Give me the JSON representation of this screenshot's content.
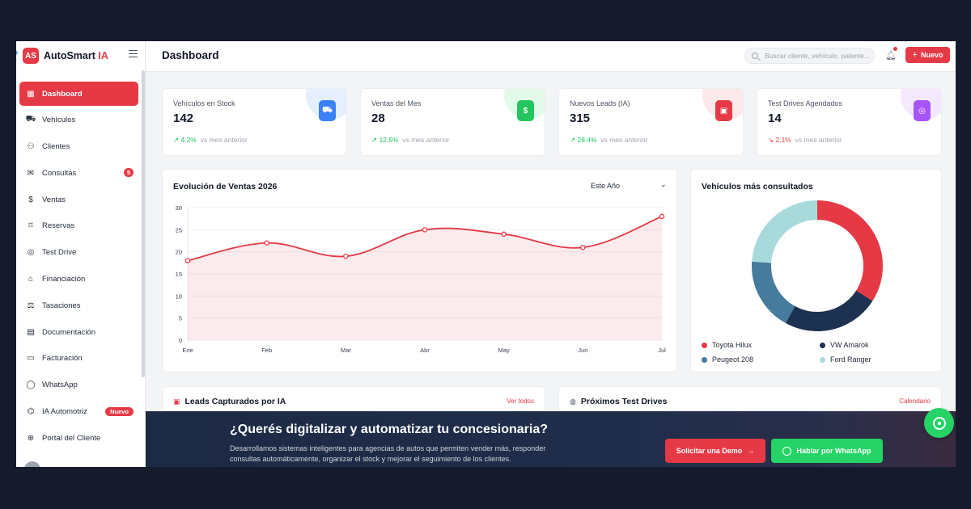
{
  "brand": {
    "name": "AutoSmart",
    "suffix": "IA",
    "logo_text": "AS"
  },
  "sidebar": {
    "items": [
      {
        "label": "Dashboard",
        "icon": "grid-icon",
        "active": true
      },
      {
        "label": "Vehículos",
        "icon": "car-icon"
      },
      {
        "label": "Clientes",
        "icon": "users-icon"
      },
      {
        "label": "Consultas",
        "icon": "chat-icon",
        "badge": "5"
      },
      {
        "label": "Ventas",
        "icon": "dollar-icon"
      },
      {
        "label": "Reservas",
        "icon": "bookmark-icon"
      },
      {
        "label": "Test Drive",
        "icon": "steering-wheel-icon"
      },
      {
        "label": "Financiación",
        "icon": "bank-icon"
      },
      {
        "label": "Tasaciones",
        "icon": "scale-icon"
      },
      {
        "label": "Documentación",
        "icon": "document-icon"
      },
      {
        "label": "Facturación",
        "icon": "invoice-icon"
      },
      {
        "label": "WhatsApp",
        "icon": "whatsapp-icon"
      },
      {
        "label": "IA Automotriz",
        "icon": "robot-icon",
        "badge": "Nuevo"
      },
      {
        "label": "Portal del Cliente",
        "icon": "globe-icon"
      }
    ]
  },
  "header": {
    "title": "Dashboard",
    "search_placeholder": "Buscar cliente, vehículo, patente...",
    "new_label": "Nuevo"
  },
  "stats": [
    {
      "label": "Vehículos en Stock",
      "value": "142",
      "delta": "4.2%",
      "direction": "up",
      "delta_suffix": "vs mes anterior",
      "icon": "car-icon",
      "color": "#3b82f6",
      "halo": "#e6efff"
    },
    {
      "label": "Ventas del Mes",
      "value": "28",
      "delta": "12.5%",
      "direction": "up",
      "delta_suffix": "vs mes anterior",
      "icon": "dollar-icon",
      "color": "#22c55e",
      "halo": "#e3f9ea"
    },
    {
      "label": "Nuevos Leads (IA)",
      "value": "315",
      "delta": "28.4%",
      "direction": "up",
      "delta_suffix": "vs mes anterior",
      "icon": "leads-icon",
      "color": "#e63946",
      "halo": "#fde8ea"
    },
    {
      "label": "Test Drives Agendados",
      "value": "14",
      "delta": "2.1%",
      "direction": "down",
      "delta_suffix": "vs mes anterior",
      "icon": "steering-wheel-icon",
      "color": "#a855f7",
      "halo": "#f3e8fe"
    }
  ],
  "sales_chart": {
    "title": "Evolución de Ventas 2026",
    "period_select": "Este Año"
  },
  "chart_data": [
    {
      "type": "area",
      "title": "Evolución de Ventas 2026",
      "categories": [
        "Ene",
        "Feb",
        "Mar",
        "Abr",
        "May",
        "Jun",
        "Jul"
      ],
      "series": [
        {
          "values": [
            18,
            22,
            19,
            25,
            24,
            21,
            28
          ],
          "color": "#e63946"
        }
      ],
      "yticks": [
        0,
        5,
        10,
        15,
        20,
        25,
        30
      ],
      "ylim": [
        0,
        30
      ],
      "grid": true
    },
    {
      "type": "pie",
      "title": "Vehículos más consultados",
      "categories": [
        "Toyota Hilux",
        "VW Amarok",
        "Peugeot 208",
        "Ford Ranger"
      ],
      "values": [
        34,
        24,
        18,
        24
      ],
      "colors": [
        "#e63946",
        "#1d3150",
        "#457b9d",
        "#a8dadc"
      ],
      "legend": "bottom"
    }
  ],
  "donut": {
    "title": "Vehículos más consultados"
  },
  "leads_card": {
    "title": "Leads Capturados por IA",
    "link": "Ver todos"
  },
  "testdrives_card": {
    "title": "Próximos Test Drives",
    "link": "Calendario"
  },
  "banner": {
    "title": "¿Querés digitalizar y automatizar tu concesionaria?",
    "text": "Desarrollamos sistemas inteligentes para agencias de autos que permiten vender más, responder consultas automáticamente, organizar el stock y mejorar el seguimiento de los clientes.",
    "demo_label": "Solicitar una Demo",
    "whatsapp_label": "Hablar por WhatsApp"
  }
}
